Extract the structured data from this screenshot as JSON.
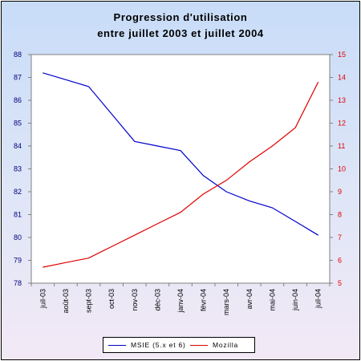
{
  "chart_data": {
    "type": "line",
    "title": "Progression d'utilisation",
    "subtitle": "entre juillet 2003 et juillet 2004",
    "categories": [
      "juil-03",
      "août-03",
      "sept-03",
      "oct-03",
      "nov-03",
      "déc-03",
      "janv-04",
      "févr-04",
      "mars-04",
      "avr-04",
      "mai-04",
      "juin-04",
      "juil-04"
    ],
    "series": [
      {
        "name": "MSIE (5.x et 6)",
        "axis": "left",
        "color": "#0000cc",
        "values": [
          87.2,
          86.9,
          86.6,
          85.4,
          84.2,
          84.0,
          83.8,
          82.7,
          82.0,
          81.6,
          81.3,
          80.7,
          80.1
        ]
      },
      {
        "name": "Mozilla",
        "axis": "right",
        "color": "#e00000",
        "values": [
          5.7,
          5.9,
          6.1,
          6.6,
          7.1,
          7.6,
          8.1,
          8.9,
          9.5,
          10.3,
          11.0,
          11.8,
          13.8
        ]
      }
    ],
    "y_left": {
      "min": 78,
      "max": 88,
      "ticks": [
        78,
        79,
        80,
        81,
        82,
        83,
        84,
        85,
        86,
        87,
        88
      ]
    },
    "y_right": {
      "min": 5,
      "max": 15,
      "ticks": [
        5,
        6,
        7,
        8,
        9,
        10,
        11,
        12,
        13,
        14,
        15
      ]
    },
    "grid": false,
    "legend_position": "bottom"
  },
  "colors": {
    "left_axis": "#000080",
    "right_axis": "#e00000",
    "plot_background": "#ffffff"
  }
}
